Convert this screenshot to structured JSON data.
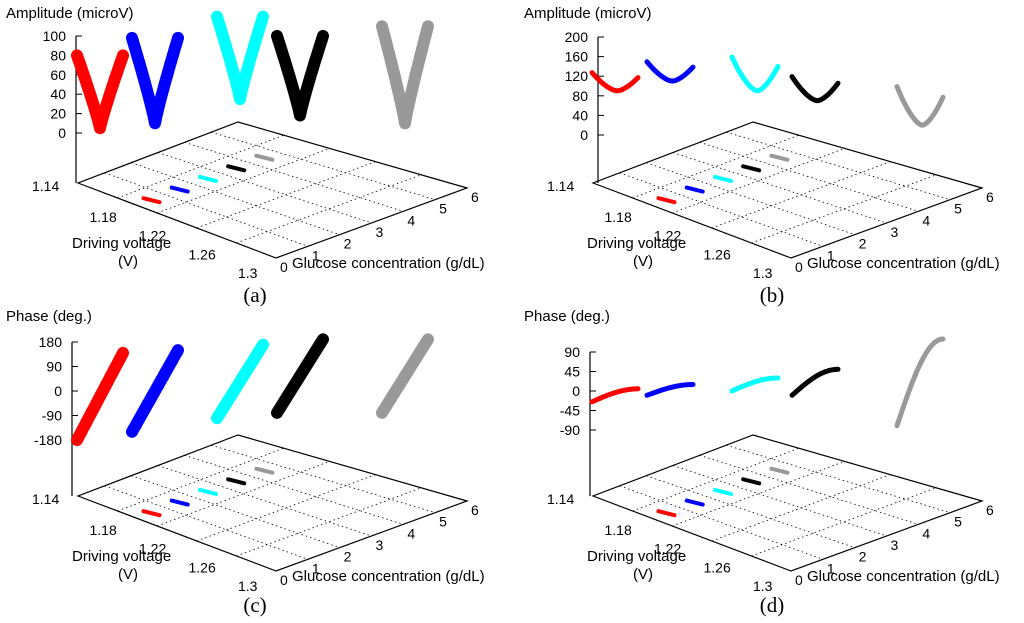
{
  "colors": {
    "red": "#ff0000",
    "blue": "#0000ff",
    "cyan": "#00ffff",
    "black": "#000000",
    "gray": "#999999",
    "green": "#00cc00",
    "magenta": "#ff00ff",
    "yellow": "#ffee00",
    "orange": "#ff7700"
  },
  "chart_data": [
    {
      "type": "3d-line",
      "panel": "a",
      "caption": "(a)",
      "zlabel": "Amplitude (microV)",
      "xlabel": "Driving voltage (V)",
      "ylabel": "Glucose concentration (g/dL)",
      "zticks": [
        "0",
        "20",
        "40",
        "60",
        "80",
        "100"
      ],
      "xticks": [
        "1.14",
        "1.18",
        "1.22",
        "1.26",
        "1.3"
      ],
      "yticks": [
        "0",
        "1",
        "2",
        "3",
        "4",
        "5",
        "6"
      ],
      "zlim": [
        0,
        100
      ],
      "shape": "v",
      "series": [
        {
          "color": "#ff0000",
          "glucose": 0,
          "v_min": 1.14,
          "v_max": 1.3,
          "min": 5,
          "max": 80
        },
        {
          "color": "#0000ff",
          "glucose": 1,
          "v_min": 1.14,
          "v_max": 1.3,
          "min": 10,
          "max": 98
        },
        {
          "color": "#00ffff",
          "glucose": 2,
          "v_min": 1.14,
          "v_max": 1.3,
          "min": 35,
          "max": 120
        },
        {
          "color": "#000000",
          "glucose": 3,
          "v_min": 1.14,
          "v_max": 1.3,
          "min": 18,
          "max": 100
        },
        {
          "color": "#999999",
          "glucose": 4,
          "v_min": 1.14,
          "v_max": 1.3,
          "min": 10,
          "max": 110
        }
      ]
    },
    {
      "type": "3d-line",
      "panel": "b",
      "caption": "(b)",
      "zlabel": "Amplitude (microV)",
      "xlabel": "Driving voltage (V)",
      "ylabel": "Glucose concentration (g/dL)",
      "zticks": [
        "0",
        "40",
        "80",
        "120",
        "160",
        "200"
      ],
      "xticks": [
        "1.14",
        "1.18",
        "1.22",
        "1.26",
        "1.3"
      ],
      "yticks": [
        "0",
        "1",
        "2",
        "3",
        "4",
        "5",
        "6"
      ],
      "zlim": [
        0,
        200
      ],
      "shape": "u",
      "series": [
        {
          "color": "#ff0000",
          "glucose": 0,
          "v_min": 1.14,
          "v_max": 1.3,
          "min": 90,
          "max": 128
        },
        {
          "color": "#0000ff",
          "glucose": 1,
          "v_min": 1.14,
          "v_max": 1.3,
          "min": 110,
          "max": 150
        },
        {
          "color": "#00ffff",
          "glucose": 2,
          "v_min": 1.14,
          "v_max": 1.3,
          "min": 90,
          "max": 160
        },
        {
          "color": "#000000",
          "glucose": 3,
          "v_min": 1.14,
          "v_max": 1.3,
          "min": 70,
          "max": 120
        },
        {
          "color": "#999999",
          "glucose": 4,
          "v_min": 1.14,
          "v_max": 1.3,
          "min": 20,
          "max": 100
        }
      ]
    },
    {
      "type": "3d-line",
      "panel": "c",
      "caption": "(c)",
      "zlabel": "Phase (deg.)",
      "xlabel": "Driving voltage (V)",
      "ylabel": "Glucose concentration (g/dL)",
      "zticks": [
        "-180",
        "-90",
        "0",
        "90",
        "180"
      ],
      "xticks": [
        "1.14",
        "1.18",
        "1.22",
        "1.26",
        "1.3"
      ],
      "yticks": [
        "0",
        "1",
        "2",
        "3",
        "4",
        "5",
        "6"
      ],
      "zlim": [
        -180,
        180
      ],
      "shape": "s",
      "series": [
        {
          "color": "#ff0000",
          "glucose": 0,
          "v_min": 1.14,
          "v_max": 1.3,
          "min": -180,
          "max": 140
        },
        {
          "color": "#0000ff",
          "glucose": 1,
          "v_min": 1.14,
          "v_max": 1.3,
          "min": -150,
          "max": 150
        },
        {
          "color": "#00ffff",
          "glucose": 2,
          "v_min": 1.14,
          "v_max": 1.3,
          "min": -100,
          "max": 170
        },
        {
          "color": "#000000",
          "glucose": 3,
          "v_min": 1.14,
          "v_max": 1.3,
          "min": -80,
          "max": 190
        },
        {
          "color": "#999999",
          "glucose": 4,
          "v_min": 1.14,
          "v_max": 1.3,
          "min": -80,
          "max": 190
        }
      ]
    },
    {
      "type": "3d-line",
      "panel": "d",
      "caption": "(d)",
      "zlabel": "Phase (deg.)",
      "xlabel": "Driving voltage (V)",
      "ylabel": "Glucose concentration (g/dL)",
      "zticks": [
        "-90",
        "-45",
        "0",
        "45",
        "90"
      ],
      "xticks": [
        "1.14",
        "1.18",
        "1.22",
        "1.26",
        "1.3"
      ],
      "yticks": [
        "0",
        "1",
        "2",
        "3",
        "4",
        "5",
        "6"
      ],
      "zlim": [
        -90,
        90
      ],
      "shape": "rise",
      "series": [
        {
          "color": "#ff0000",
          "glucose": 0,
          "v_min": 1.14,
          "v_max": 1.3,
          "min": -25,
          "max": 5
        },
        {
          "color": "#0000ff",
          "glucose": 1,
          "v_min": 1.14,
          "v_max": 1.3,
          "min": -10,
          "max": 15
        },
        {
          "color": "#00ffff",
          "glucose": 2,
          "v_min": 1.14,
          "v_max": 1.3,
          "min": 0,
          "max": 30
        },
        {
          "color": "#000000",
          "glucose": 3,
          "v_min": 1.14,
          "v_max": 1.3,
          "min": -10,
          "max": 50
        },
        {
          "color": "#999999",
          "glucose": 4,
          "v_min": 1.14,
          "v_max": 1.3,
          "min": -80,
          "max": 120
        }
      ]
    }
  ]
}
